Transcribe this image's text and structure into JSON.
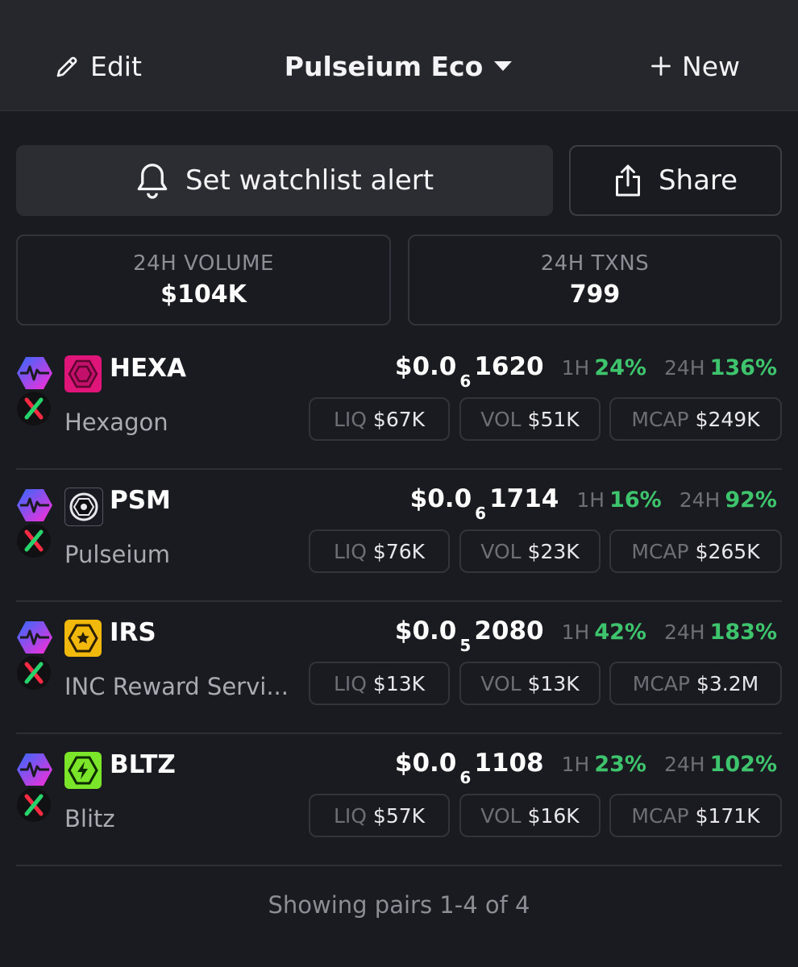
{
  "header": {
    "edit_label": "Edit",
    "title": "Pulseium Eco",
    "new_label": "New"
  },
  "actions": {
    "alert_label": "Set watchlist alert",
    "share_label": "Share"
  },
  "stats": {
    "volume_label": "24H VOLUME",
    "volume_value": "$104K",
    "txns_label": "24H TXNS",
    "txns_value": "799"
  },
  "pairs": [
    {
      "symbol": "HEXA",
      "name": "Hexagon",
      "price_prefix": "$0.0",
      "price_zeros": "6",
      "price_digits": "1620",
      "h1_label": "1H",
      "h1_value": "24%",
      "h24_label": "24H",
      "h24_value": "136%",
      "liq_label": "LIQ",
      "liq_value": "$67K",
      "vol_label": "VOL",
      "vol_value": "$51K",
      "mcap_label": "MCAP",
      "mcap_value": "$249K",
      "icon": "hexagon-token-icon",
      "icon_color": "#e0157a"
    },
    {
      "symbol": "PSM",
      "name": "Pulseium",
      "price_prefix": "$0.0",
      "price_zeros": "6",
      "price_digits": "1714",
      "h1_label": "1H",
      "h1_value": "16%",
      "h24_label": "24H",
      "h24_value": "92%",
      "liq_label": "LIQ",
      "liq_value": "$76K",
      "vol_label": "VOL",
      "vol_value": "$23K",
      "mcap_label": "MCAP",
      "mcap_value": "$265K",
      "icon": "pulseium-token-icon",
      "icon_color": "#1a1a22"
    },
    {
      "symbol": "IRS",
      "name": "INC Reward Servi...",
      "price_prefix": "$0.0",
      "price_zeros": "5",
      "price_digits": "2080",
      "h1_label": "1H",
      "h1_value": "42%",
      "h24_label": "24H",
      "h24_value": "183%",
      "liq_label": "LIQ",
      "liq_value": "$13K",
      "vol_label": "VOL",
      "vol_value": "$13K",
      "mcap_label": "MCAP",
      "mcap_value": "$3.2M",
      "icon": "star-token-icon",
      "icon_color": "#f1b90b"
    },
    {
      "symbol": "BLTZ",
      "name": "Blitz",
      "price_prefix": "$0.0",
      "price_zeros": "6",
      "price_digits": "1108",
      "h1_label": "1H",
      "h1_value": "23%",
      "h24_label": "24H",
      "h24_value": "102%",
      "liq_label": "LIQ",
      "liq_value": "$57K",
      "vol_label": "VOL",
      "vol_value": "$16K",
      "mcap_label": "MCAP",
      "mcap_value": "$171K",
      "icon": "lightning-token-icon",
      "icon_color": "#7be52a"
    }
  ],
  "colors": {
    "positive": "#3ec46d",
    "background": "#1a1b20",
    "chain_gradient_start": "#2f6bff",
    "chain_gradient_end": "#ff2bd6"
  },
  "footer": {
    "text": "Showing pairs 1-4 of 4"
  }
}
